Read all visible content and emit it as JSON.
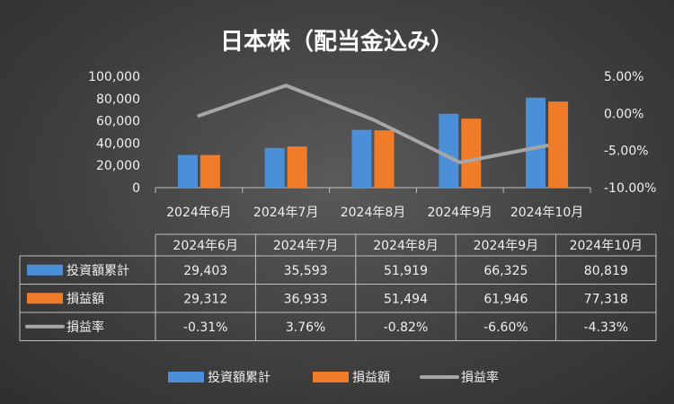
{
  "chart_data": {
    "type": "bar",
    "title": "日本株（配当金込み）",
    "categories": [
      "2024年6月",
      "2024年7月",
      "2024年8月",
      "2024年9月",
      "2024年10月"
    ],
    "series": [
      {
        "name": "投資額累計",
        "type": "bar",
        "axis": "left",
        "color": "#4a8fd8",
        "values": [
          29403,
          35593,
          51919,
          66325,
          80819
        ],
        "labels": [
          "29,403",
          "35,593",
          "51,919",
          "66,325",
          "80,819"
        ]
      },
      {
        "name": "損益額",
        "type": "bar",
        "axis": "left",
        "color": "#f07c2a",
        "values": [
          29312,
          36933,
          51494,
          61946,
          77318
        ],
        "labels": [
          "29,312",
          "36,933",
          "51,494",
          "61,946",
          "77,318"
        ]
      },
      {
        "name": "損益率",
        "type": "line",
        "axis": "right",
        "color": "#a6a6a6",
        "values": [
          -0.31,
          3.76,
          -0.82,
          -6.6,
          -4.33
        ],
        "labels": [
          "-0.31%",
          "3.76%",
          "-0.82%",
          "-6.60%",
          "-4.33%"
        ]
      }
    ],
    "y_left": {
      "ylim": [
        0,
        100000
      ],
      "ticks": [
        0,
        20000,
        40000,
        60000,
        80000,
        100000
      ],
      "tick_labels": [
        "0",
        "20,000",
        "40,000",
        "60,000",
        "80,000",
        "100,000"
      ]
    },
    "y_right": {
      "ylim": [
        -10,
        5
      ],
      "ticks": [
        5,
        0,
        -5,
        -10
      ],
      "tick_labels": [
        "5.00%",
        "0.00%",
        "-5.00%",
        "-10.00%"
      ]
    },
    "grid": false,
    "legend": "bottom",
    "data_table": true
  }
}
